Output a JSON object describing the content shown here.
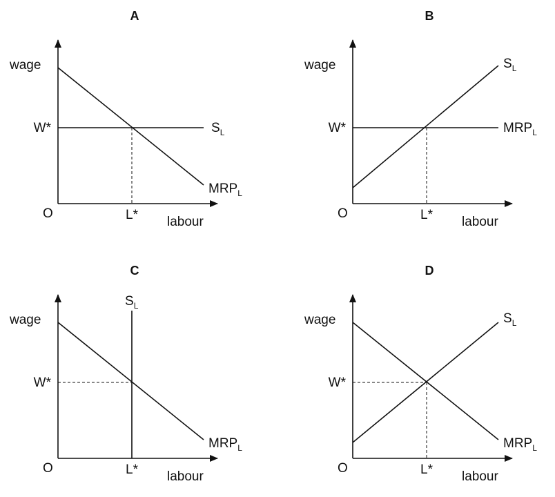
{
  "panels": [
    {
      "title": "A",
      "y_label": "wage",
      "x_label": "labour",
      "origin": "O",
      "w_star": "W*",
      "l_star": "L*",
      "supply": {
        "main": "S",
        "sub": "L"
      },
      "mrp": {
        "main": "MRP",
        "sub": "L"
      }
    },
    {
      "title": "B",
      "y_label": "wage",
      "x_label": "labour",
      "origin": "O",
      "w_star": "W*",
      "l_star": "L*",
      "supply": {
        "main": "S",
        "sub": "L"
      },
      "mrp": {
        "main": "MRP",
        "sub": "L"
      }
    },
    {
      "title": "C",
      "y_label": "wage",
      "x_label": "labour",
      "origin": "O",
      "w_star": "W*",
      "l_star": "L*",
      "supply": {
        "main": "S",
        "sub": "L"
      },
      "mrp": {
        "main": "MRP",
        "sub": "L"
      }
    },
    {
      "title": "D",
      "y_label": "wage",
      "x_label": "labour",
      "origin": "O",
      "w_star": "W*",
      "l_star": "L*",
      "supply": {
        "main": "S",
        "sub": "L"
      },
      "mrp": {
        "main": "MRP",
        "sub": "L"
      }
    }
  ]
}
